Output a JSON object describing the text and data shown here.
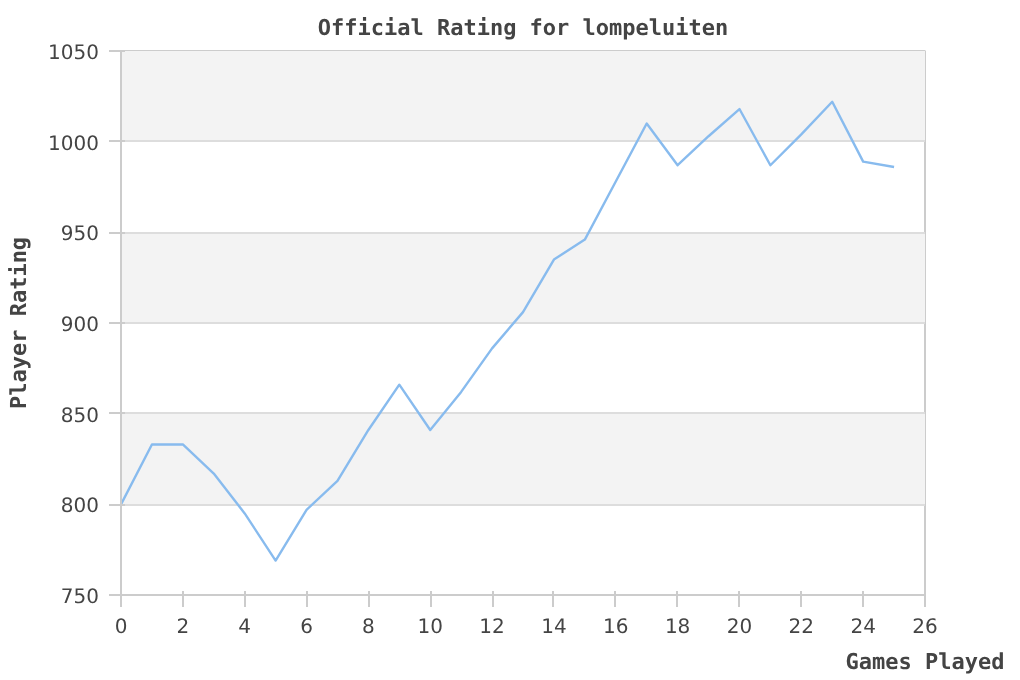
{
  "chart_data": {
    "type": "line",
    "title": "Official Rating for lompeluiten",
    "xlabel": "Games Played",
    "ylabel": "Player Rating",
    "x": [
      0,
      1,
      2,
      3,
      4,
      5,
      6,
      7,
      8,
      9,
      10,
      11,
      12,
      13,
      14,
      15,
      16,
      17,
      18,
      19,
      20,
      21,
      22,
      23,
      24,
      25
    ],
    "series": [
      {
        "color": "#88bbee",
        "values": [
          800,
          833,
          833,
          817,
          795,
          769,
          797,
          813,
          841,
          866,
          841,
          862,
          886,
          906,
          935,
          946,
          978,
          1010,
          987,
          1003,
          1018,
          987,
          1004,
          1022,
          989,
          986
        ]
      }
    ],
    "xlim": [
      0,
      26
    ],
    "ylim": [
      750,
      1050
    ],
    "xticks": [
      0,
      2,
      4,
      6,
      8,
      10,
      12,
      14,
      16,
      18,
      20,
      22,
      24,
      26
    ],
    "yticks": [
      750,
      800,
      850,
      900,
      950,
      1000,
      1050
    ],
    "grid": "y",
    "marker": "none",
    "line_style": "solid"
  }
}
